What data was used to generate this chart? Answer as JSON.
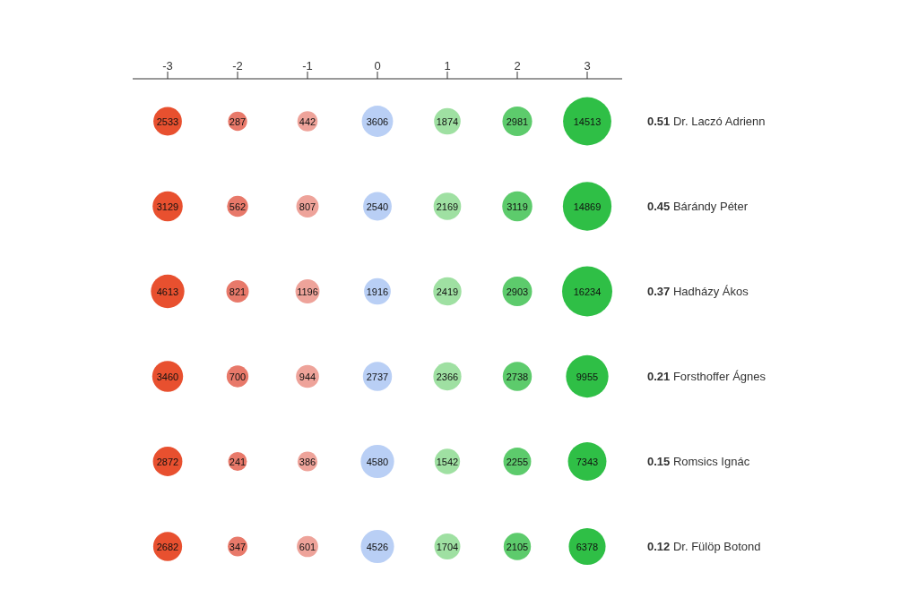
{
  "chart_data": {
    "type": "heatmap",
    "categories": [
      "-3",
      "-2",
      "-1",
      "0",
      "1",
      "2",
      "3"
    ],
    "y_categories": [
      "0.51 Dr. Laczó Adrienn",
      "0.45 Bárándy Péter",
      "0.37 Hadházy Ákos",
      "0.21 Forsthoffer Ágnes",
      "0.15 Romsics Ignác",
      "0.12 Dr. Fülöp Botond"
    ],
    "cells": [
      [
        2533,
        287,
        442,
        3606,
        1874,
        2981,
        14513
      ],
      [
        3129,
        562,
        807,
        2540,
        2169,
        3119,
        14869
      ],
      [
        4613,
        821,
        1196,
        1916,
        2419,
        2903,
        16234
      ],
      [
        3460,
        700,
        944,
        2737,
        2366,
        2738,
        9955
      ],
      [
        2872,
        241,
        386,
        4580,
        1542,
        2255,
        7343
      ],
      [
        2682,
        347,
        601,
        4526,
        1704,
        2105,
        6378
      ]
    ],
    "colors": [
      "#e8502f",
      "#e8796a",
      "#eea39a",
      "#b9cff5",
      "#9fe0a2",
      "#5dcb6c",
      "#2fbf46"
    ],
    "data_labels": true
  }
}
